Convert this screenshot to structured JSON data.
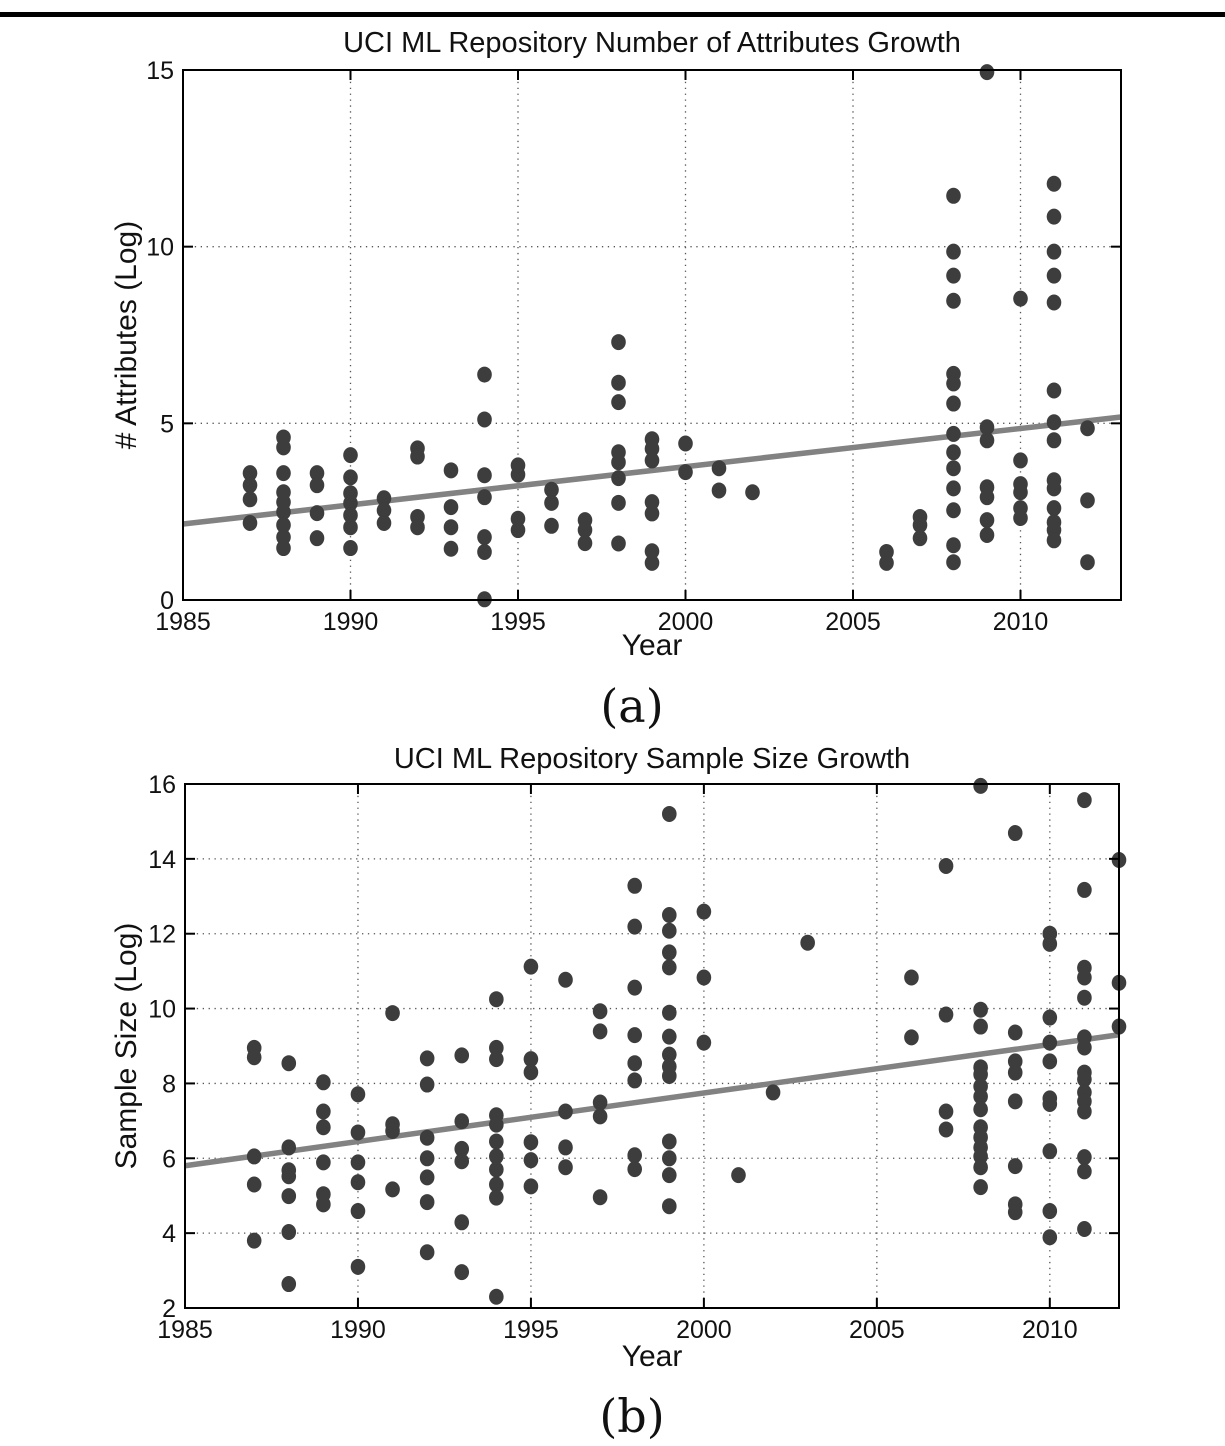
{
  "style": {
    "point_color": "#3d3d3d",
    "trend_color": "#828282",
    "axis_color": "#000000",
    "grid_color": "#555555",
    "top_rule_color": "#000000"
  },
  "chart_data": [
    {
      "id": "a",
      "type": "scatter",
      "title": "UCI ML Repository Number of Attributes Growth",
      "xlabel": "Year",
      "ylabel": "# Attributes (Log)",
      "caption": "(a)",
      "xlim": [
        1985,
        2013
      ],
      "ylim": [
        0,
        15
      ],
      "xticks": [
        1985,
        1990,
        1995,
        2000,
        2005,
        2010
      ],
      "yticks": [
        0,
        5,
        10,
        15
      ],
      "grid": "dotted",
      "legend": "none",
      "trend_line": {
        "x1": 1985,
        "y1": 2.15,
        "x2": 2013,
        "y2": 5.18
      },
      "points": [
        [
          1987,
          3.59
        ],
        [
          1987,
          3.25
        ],
        [
          1987,
          2.85
        ],
        [
          1987,
          2.18
        ],
        [
          1988,
          4.6
        ],
        [
          1988,
          4.32
        ],
        [
          1988,
          3.59
        ],
        [
          1988,
          3.05
        ],
        [
          1988,
          2.77
        ],
        [
          1988,
          2.49
        ],
        [
          1988,
          2.12
        ],
        [
          1988,
          1.78
        ],
        [
          1988,
          1.47
        ],
        [
          1989,
          3.59
        ],
        [
          1989,
          3.25
        ],
        [
          1989,
          2.46
        ],
        [
          1989,
          1.75
        ],
        [
          1990,
          4.1
        ],
        [
          1990,
          3.47
        ],
        [
          1990,
          3.02
        ],
        [
          1990,
          2.74
        ],
        [
          1990,
          2.4
        ],
        [
          1990,
          2.06
        ],
        [
          1990,
          1.47
        ],
        [
          1991,
          2.88
        ],
        [
          1991,
          2.54
        ],
        [
          1991,
          2.18
        ],
        [
          1992,
          4.29
        ],
        [
          1992,
          4.06
        ],
        [
          1992,
          2.35
        ],
        [
          1992,
          2.06
        ],
        [
          1993,
          3.67
        ],
        [
          1993,
          2.63
        ],
        [
          1993,
          2.06
        ],
        [
          1993,
          1.45
        ],
        [
          1994,
          6.38
        ],
        [
          1994,
          5.11
        ],
        [
          1994,
          3.53
        ],
        [
          1994,
          2.91
        ],
        [
          1994,
          1.78
        ],
        [
          1994,
          1.36
        ],
        [
          1994,
          0.02
        ],
        [
          1995,
          3.81
        ],
        [
          1995,
          3.55
        ],
        [
          1995,
          2.3
        ],
        [
          1995,
          1.98
        ],
        [
          1996,
          3.12
        ],
        [
          1996,
          2.75
        ],
        [
          1996,
          2.1
        ],
        [
          1997,
          2.26
        ],
        [
          1997,
          1.98
        ],
        [
          1997,
          1.61
        ],
        [
          1998,
          7.3
        ],
        [
          1998,
          6.15
        ],
        [
          1998,
          5.6
        ],
        [
          1998,
          4.18
        ],
        [
          1998,
          3.9
        ],
        [
          1998,
          3.45
        ],
        [
          1998,
          2.75
        ],
        [
          1998,
          1.6
        ],
        [
          1999,
          4.55
        ],
        [
          1999,
          4.28
        ],
        [
          1999,
          3.95
        ],
        [
          1999,
          2.77
        ],
        [
          1999,
          2.45
        ],
        [
          1999,
          1.38
        ],
        [
          1999,
          1.05
        ],
        [
          2000,
          4.43
        ],
        [
          2000,
          3.62
        ],
        [
          2001,
          3.73
        ],
        [
          2001,
          3.1
        ],
        [
          2002,
          3.05
        ],
        [
          2006,
          1.36
        ],
        [
          2006,
          1.05
        ],
        [
          2007,
          2.35
        ],
        [
          2007,
          2.12
        ],
        [
          2007,
          1.75
        ],
        [
          2008,
          11.44
        ],
        [
          2008,
          9.86
        ],
        [
          2008,
          9.18
        ],
        [
          2008,
          8.47
        ],
        [
          2008,
          6.4
        ],
        [
          2008,
          6.13
        ],
        [
          2008,
          5.56
        ],
        [
          2008,
          4.7
        ],
        [
          2008,
          4.18
        ],
        [
          2008,
          3.73
        ],
        [
          2008,
          3.16
        ],
        [
          2008,
          2.54
        ],
        [
          2008,
          1.55
        ],
        [
          2008,
          1.07
        ],
        [
          2009,
          14.94
        ],
        [
          2009,
          4.89
        ],
        [
          2009,
          4.52
        ],
        [
          2009,
          3.19
        ],
        [
          2009,
          2.91
        ],
        [
          2009,
          2.26
        ],
        [
          2009,
          1.84
        ],
        [
          2010,
          8.53
        ],
        [
          2010,
          3.95
        ],
        [
          2010,
          3.28
        ],
        [
          2010,
          3.05
        ],
        [
          2010,
          2.6
        ],
        [
          2010,
          2.32
        ],
        [
          2011,
          11.78
        ],
        [
          2011,
          10.85
        ],
        [
          2011,
          9.86
        ],
        [
          2011,
          9.18
        ],
        [
          2011,
          8.42
        ],
        [
          2011,
          5.93
        ],
        [
          2011,
          5.03
        ],
        [
          2011,
          4.52
        ],
        [
          2011,
          3.39
        ],
        [
          2011,
          3.16
        ],
        [
          2011,
          2.6
        ],
        [
          2011,
          2.2
        ],
        [
          2011,
          1.98
        ],
        [
          2011,
          1.69
        ],
        [
          2012,
          4.86
        ],
        [
          2012,
          2.82
        ],
        [
          2012,
          1.07
        ]
      ]
    },
    {
      "id": "b",
      "type": "scatter",
      "title": "UCI ML Repository Sample Size Growth",
      "xlabel": "Year",
      "ylabel": "Sample Size (Log)",
      "caption": "(b)",
      "xlim": [
        1985,
        2012
      ],
      "ylim": [
        2,
        16
      ],
      "xticks": [
        1985,
        1990,
        1995,
        2000,
        2005,
        2010
      ],
      "yticks": [
        2,
        4,
        6,
        8,
        10,
        12,
        14,
        16
      ],
      "grid": "dotted",
      "legend": "none",
      "trend_line": {
        "x1": 1985,
        "y1": 5.8,
        "x2": 2012,
        "y2": 9.3
      },
      "points": [
        [
          1987,
          8.95
        ],
        [
          1987,
          8.7
        ],
        [
          1987,
          6.05
        ],
        [
          1987,
          5.3
        ],
        [
          1987,
          3.8
        ],
        [
          1988,
          8.54
        ],
        [
          1988,
          6.29
        ],
        [
          1988,
          5.68
        ],
        [
          1988,
          5.52
        ],
        [
          1988,
          4.99
        ],
        [
          1988,
          4.03
        ],
        [
          1988,
          2.64
        ],
        [
          1989,
          8.03
        ],
        [
          1989,
          7.25
        ],
        [
          1989,
          6.83
        ],
        [
          1989,
          5.89
        ],
        [
          1989,
          5.04
        ],
        [
          1989,
          4.77
        ],
        [
          1990,
          7.71
        ],
        [
          1990,
          6.69
        ],
        [
          1990,
          5.89
        ],
        [
          1990,
          5.36
        ],
        [
          1990,
          4.59
        ],
        [
          1990,
          3.1
        ],
        [
          1991,
          9.88
        ],
        [
          1991,
          6.91
        ],
        [
          1991,
          6.73
        ],
        [
          1991,
          5.17
        ],
        [
          1992,
          8.67
        ],
        [
          1992,
          7.97
        ],
        [
          1992,
          6.55
        ],
        [
          1992,
          6.0
        ],
        [
          1992,
          5.49
        ],
        [
          1992,
          4.83
        ],
        [
          1992,
          3.49
        ],
        [
          1993,
          8.75
        ],
        [
          1993,
          6.99
        ],
        [
          1993,
          6.25
        ],
        [
          1993,
          5.92
        ],
        [
          1993,
          4.29
        ],
        [
          1993,
          2.96
        ],
        [
          1994,
          10.25
        ],
        [
          1994,
          8.95
        ],
        [
          1994,
          8.65
        ],
        [
          1994,
          7.15
        ],
        [
          1994,
          6.9
        ],
        [
          1994,
          6.45
        ],
        [
          1994,
          6.05
        ],
        [
          1994,
          5.7
        ],
        [
          1994,
          5.3
        ],
        [
          1994,
          4.95
        ],
        [
          1994,
          2.3
        ],
        [
          1995,
          11.12
        ],
        [
          1995,
          8.65
        ],
        [
          1995,
          8.3
        ],
        [
          1995,
          6.43
        ],
        [
          1995,
          5.95
        ],
        [
          1995,
          5.25
        ],
        [
          1996,
          10.77
        ],
        [
          1996,
          7.25
        ],
        [
          1996,
          6.29
        ],
        [
          1996,
          5.76
        ],
        [
          1997,
          9.93
        ],
        [
          1997,
          9.39
        ],
        [
          1997,
          7.49
        ],
        [
          1997,
          7.12
        ],
        [
          1997,
          4.96
        ],
        [
          1998,
          13.28
        ],
        [
          1998,
          12.19
        ],
        [
          1998,
          10.56
        ],
        [
          1998,
          9.29
        ],
        [
          1998,
          8.54
        ],
        [
          1998,
          8.08
        ],
        [
          1998,
          6.08
        ],
        [
          1998,
          5.71
        ],
        [
          1999,
          15.2
        ],
        [
          1999,
          12.5
        ],
        [
          1999,
          12.08
        ],
        [
          1999,
          11.5
        ],
        [
          1999,
          11.1
        ],
        [
          1999,
          9.89
        ],
        [
          1999,
          9.25
        ],
        [
          1999,
          8.77
        ],
        [
          1999,
          8.45
        ],
        [
          1999,
          8.2
        ],
        [
          1999,
          6.45
        ],
        [
          1999,
          6.0
        ],
        [
          1999,
          5.55
        ],
        [
          1999,
          4.72
        ],
        [
          2000,
          12.59
        ],
        [
          2000,
          10.83
        ],
        [
          2000,
          9.09
        ],
        [
          2001,
          5.55
        ],
        [
          2002,
          7.76
        ],
        [
          2003,
          11.76
        ],
        [
          2006,
          10.83
        ],
        [
          2006,
          9.23
        ],
        [
          2007,
          13.81
        ],
        [
          2007,
          9.84
        ],
        [
          2007,
          7.25
        ],
        [
          2007,
          6.77
        ],
        [
          2008,
          15.95
        ],
        [
          2008,
          9.97
        ],
        [
          2008,
          9.52
        ],
        [
          2008,
          8.43
        ],
        [
          2008,
          8.24
        ],
        [
          2008,
          7.92
        ],
        [
          2008,
          7.65
        ],
        [
          2008,
          7.31
        ],
        [
          2008,
          6.83
        ],
        [
          2008,
          6.56
        ],
        [
          2008,
          6.29
        ],
        [
          2008,
          6.05
        ],
        [
          2008,
          5.76
        ],
        [
          2008,
          5.23
        ],
        [
          2009,
          14.69
        ],
        [
          2009,
          9.36
        ],
        [
          2009,
          8.59
        ],
        [
          2009,
          8.29
        ],
        [
          2009,
          7.52
        ],
        [
          2009,
          5.79
        ],
        [
          2009,
          4.77
        ],
        [
          2009,
          4.56
        ],
        [
          2010,
          12.0
        ],
        [
          2010,
          11.73
        ],
        [
          2010,
          9.76
        ],
        [
          2010,
          9.09
        ],
        [
          2010,
          8.59
        ],
        [
          2010,
          7.6
        ],
        [
          2010,
          7.45
        ],
        [
          2010,
          6.19
        ],
        [
          2010,
          4.59
        ],
        [
          2010,
          3.89
        ],
        [
          2011,
          15.57
        ],
        [
          2011,
          13.17
        ],
        [
          2011,
          11.09
        ],
        [
          2011,
          10.83
        ],
        [
          2011,
          10.29
        ],
        [
          2011,
          9.23
        ],
        [
          2011,
          8.96
        ],
        [
          2011,
          8.29
        ],
        [
          2011,
          8.11
        ],
        [
          2011,
          7.76
        ],
        [
          2011,
          7.52
        ],
        [
          2011,
          7.25
        ],
        [
          2011,
          6.03
        ],
        [
          2011,
          5.65
        ],
        [
          2011,
          4.11
        ],
        [
          2012,
          13.97
        ],
        [
          2012,
          10.69
        ],
        [
          2012,
          9.52
        ]
      ]
    }
  ]
}
